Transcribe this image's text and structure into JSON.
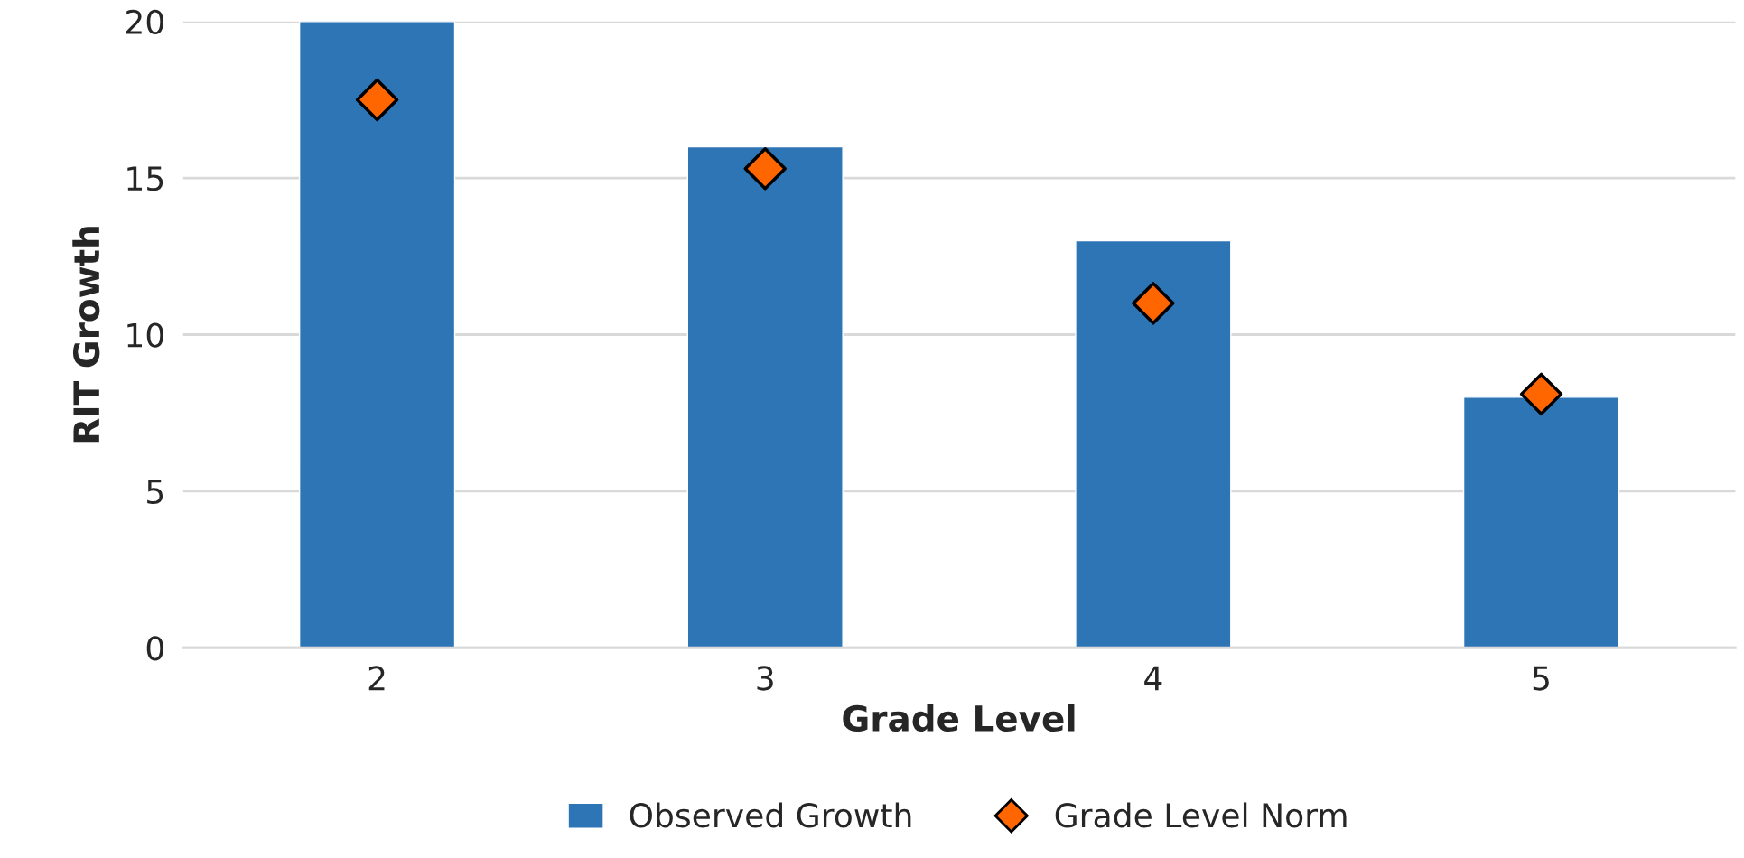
{
  "chart_data": {
    "type": "bar",
    "xlabel": "Grade Level",
    "ylabel": "RIT Growth",
    "categories": [
      "2",
      "3",
      "4",
      "5"
    ],
    "series": [
      {
        "name": "Observed Growth",
        "color": "#2e75b6",
        "values": [
          20,
          16,
          13,
          8
        ]
      },
      {
        "name": "Grade Level Norm",
        "type": "scatter",
        "marker": "diamond",
        "color": "#ff6600",
        "values": [
          17.5,
          15.3,
          11,
          8.1
        ]
      }
    ],
    "ylim": [
      0,
      20
    ],
    "yticks": [
      0,
      5,
      10,
      15,
      20
    ],
    "grid": "y",
    "legend": "bottom"
  }
}
